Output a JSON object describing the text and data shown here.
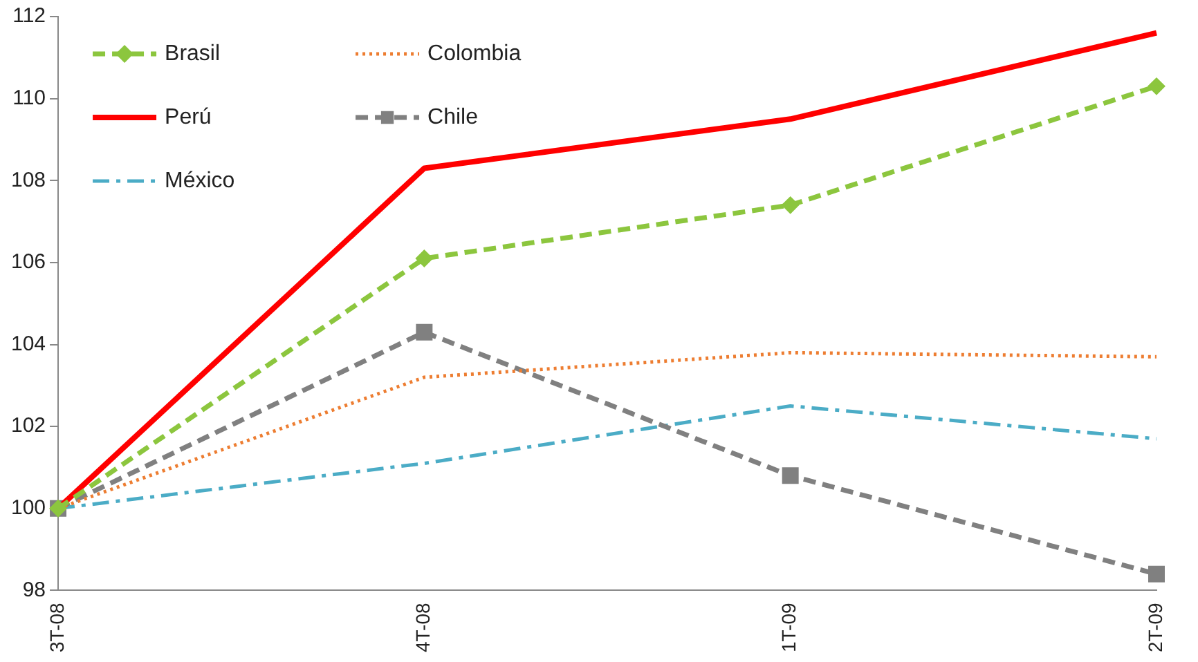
{
  "chart_data": {
    "type": "line",
    "categories": [
      "3T-08",
      "4T-08",
      "1T-09",
      "2T-09"
    ],
    "series": [
      {
        "name": "Brasil",
        "color": "#8cc63e",
        "values": [
          100,
          106.1,
          107.4,
          110.3
        ],
        "marker": "diamond",
        "line_style": "dashed"
      },
      {
        "name": "Colombia",
        "color": "#ed7d31",
        "values": [
          100,
          103.2,
          103.8,
          103.7
        ],
        "marker": "none",
        "line_style": "dotted"
      },
      {
        "name": "Perú",
        "color": "#ff0000",
        "values": [
          100,
          108.3,
          109.5,
          111.6
        ],
        "marker": "none",
        "line_style": "solid"
      },
      {
        "name": "Chile",
        "color": "#808080",
        "values": [
          100,
          104.3,
          100.8,
          98.4
        ],
        "marker": "square",
        "line_style": "dashed"
      },
      {
        "name": "México",
        "color": "#4bacc6",
        "values": [
          100,
          101.1,
          102.5,
          101.7
        ],
        "marker": "none",
        "line_style": "dashdot"
      }
    ],
    "ylim": [
      98,
      112
    ],
    "yticks": [
      98,
      100,
      102,
      104,
      106,
      108,
      110,
      112
    ],
    "grid": false,
    "legend": "top left"
  }
}
